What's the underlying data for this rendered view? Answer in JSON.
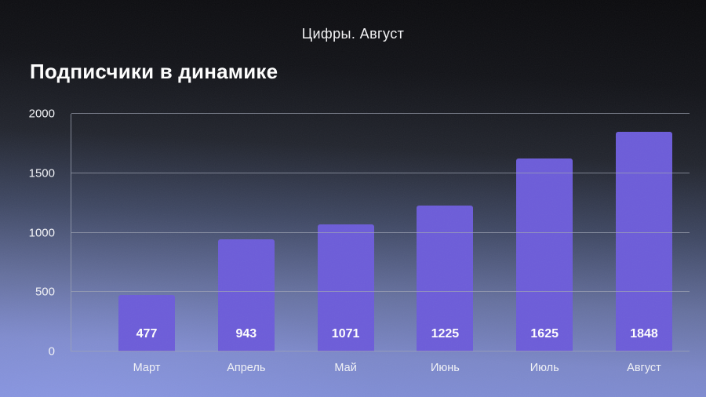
{
  "header": {
    "kicker": "Цифры. Август"
  },
  "title": "Подписчики в динамике",
  "theme": {
    "bar-color": "#6C5CD9",
    "text-color": "#FFFFFF",
    "grid-color": "#9EA4B4",
    "bg-top": "#0A0A0D",
    "bg-bottom": "#8290DC"
  },
  "chart_data": {
    "type": "bar",
    "title": "Подписчики в динамике",
    "categories": [
      "Март",
      "Апрель",
      "Май",
      "Июнь",
      "Июль",
      "Август"
    ],
    "values": [
      477,
      943,
      1071,
      1225,
      1625,
      1848
    ],
    "xlabel": "",
    "ylabel": "",
    "ylim": [
      0,
      2000
    ],
    "yticks": [
      0,
      500,
      1000,
      1500,
      2000
    ],
    "grid": true,
    "legend": false,
    "value_labels": "inside-bottom"
  }
}
